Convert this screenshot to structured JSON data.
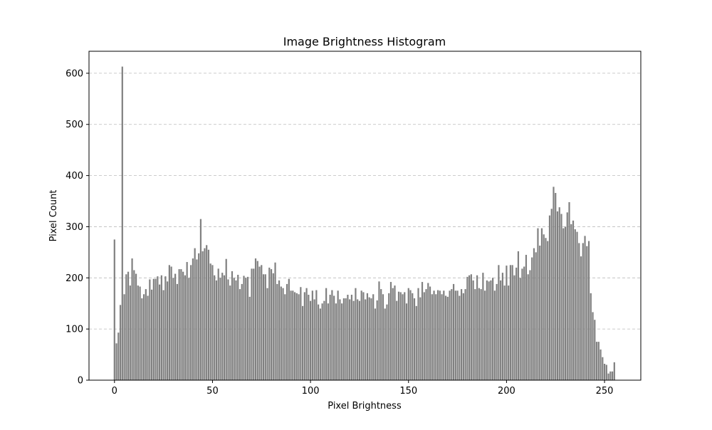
{
  "chart_data": {
    "type": "bar",
    "title": "Image Brightness Histogram",
    "x_label": "Pixel Brightness",
    "y_label": "Pixel Count",
    "color": "#808080",
    "grid": true,
    "x": [
      0,
      1,
      2,
      3,
      4,
      5,
      6,
      7,
      8,
      9,
      10,
      11,
      12,
      13,
      14,
      15,
      16,
      17,
      18,
      19,
      20,
      21,
      22,
      23,
      24,
      25,
      26,
      27,
      28,
      29,
      30,
      31,
      32,
      33,
      34,
      35,
      36,
      37,
      38,
      39,
      40,
      41,
      42,
      43,
      44,
      45,
      46,
      47,
      48,
      49,
      50,
      51,
      52,
      53,
      54,
      55,
      56,
      57,
      58,
      59,
      60,
      61,
      62,
      63,
      64,
      65,
      66,
      67,
      68,
      69,
      70,
      71,
      72,
      73,
      74,
      75,
      76,
      77,
      78,
      79,
      80,
      81,
      82,
      83,
      84,
      85,
      86,
      87,
      88,
      89,
      90,
      91,
      92,
      93,
      94,
      95,
      96,
      97,
      98,
      99,
      100,
      101,
      102,
      103,
      104,
      105,
      106,
      107,
      108,
      109,
      110,
      111,
      112,
      113,
      114,
      115,
      116,
      117,
      118,
      119,
      120,
      121,
      122,
      123,
      124,
      125,
      126,
      127,
      128,
      129,
      130,
      131,
      132,
      133,
      134,
      135,
      136,
      137,
      138,
      139,
      140,
      141,
      142,
      143,
      144,
      145,
      146,
      147,
      148,
      149,
      150,
      151,
      152,
      153,
      154,
      155,
      156,
      157,
      158,
      159,
      160,
      161,
      162,
      163,
      164,
      165,
      166,
      167,
      168,
      169,
      170,
      171,
      172,
      173,
      174,
      175,
      176,
      177,
      178,
      179,
      180,
      181,
      182,
      183,
      184,
      185,
      186,
      187,
      188,
      189,
      190,
      191,
      192,
      193,
      194,
      195,
      196,
      197,
      198,
      199,
      200,
      201,
      202,
      203,
      204,
      205,
      206,
      207,
      208,
      209,
      210,
      211,
      212,
      213,
      214,
      215,
      216,
      217,
      218,
      219,
      220,
      221,
      222,
      223,
      224,
      225,
      226,
      227,
      228,
      229,
      230,
      231,
      232,
      233,
      234,
      235,
      236,
      237,
      238,
      239,
      240,
      241,
      242,
      243,
      244,
      245,
      246,
      247,
      248,
      249,
      250,
      251,
      252,
      253,
      254,
      255
    ],
    "values": [
      275,
      72,
      93,
      147,
      613,
      168,
      207,
      212,
      185,
      238,
      215,
      208,
      185,
      183,
      160,
      168,
      178,
      165,
      197,
      177,
      198,
      198,
      203,
      187,
      205,
      176,
      203,
      193,
      225,
      222,
      200,
      208,
      188,
      217,
      217,
      212,
      205,
      231,
      200,
      225,
      238,
      258,
      236,
      248,
      315,
      252,
      258,
      264,
      255,
      228,
      225,
      205,
      195,
      218,
      200,
      210,
      205,
      237,
      197,
      185,
      213,
      200,
      195,
      206,
      178,
      188,
      204,
      200,
      202,
      163,
      218,
      218,
      238,
      233,
      222,
      225,
      207,
      207,
      180,
      220,
      217,
      209,
      230,
      188,
      195,
      183,
      180,
      168,
      188,
      198,
      175,
      175,
      172,
      170,
      168,
      182,
      145,
      172,
      180,
      167,
      155,
      175,
      158,
      176,
      148,
      140,
      150,
      155,
      180,
      150,
      167,
      176,
      165,
      150,
      175,
      158,
      150,
      160,
      160,
      167,
      158,
      167,
      155,
      180,
      158,
      155,
      175,
      172,
      158,
      170,
      162,
      160,
      168,
      140,
      156,
      193,
      178,
      168,
      140,
      148,
      170,
      192,
      180,
      185,
      155,
      173,
      172,
      168,
      172,
      150,
      180,
      176,
      170,
      160,
      145,
      180,
      162,
      192,
      172,
      178,
      190,
      183,
      168,
      175,
      168,
      176,
      175,
      168,
      175,
      165,
      163,
      175,
      178,
      188,
      175,
      175,
      165,
      178,
      170,
      178,
      202,
      205,
      207,
      195,
      178,
      205,
      180,
      178,
      210,
      175,
      195,
      193,
      195,
      200,
      175,
      188,
      225,
      195,
      210,
      185,
      224,
      185,
      225,
      225,
      205,
      220,
      252,
      200,
      218,
      222,
      245,
      207,
      215,
      240,
      258,
      250,
      297,
      263,
      297,
      285,
      278,
      272,
      322,
      335,
      378,
      366,
      330,
      338,
      325,
      297,
      300,
      328,
      348,
      305,
      312,
      295,
      290,
      268,
      242,
      268,
      282,
      262,
      272,
      170,
      133,
      118,
      75,
      75,
      60,
      45,
      32,
      30,
      13,
      17,
      17,
      35
    ],
    "xlim": [
      -13,
      268.5
    ],
    "ylim": [
      0,
      643
    ],
    "xticks": [
      0,
      50,
      100,
      150,
      200,
      250
    ],
    "yticks": [
      0,
      100,
      200,
      300,
      400,
      500,
      600
    ]
  }
}
